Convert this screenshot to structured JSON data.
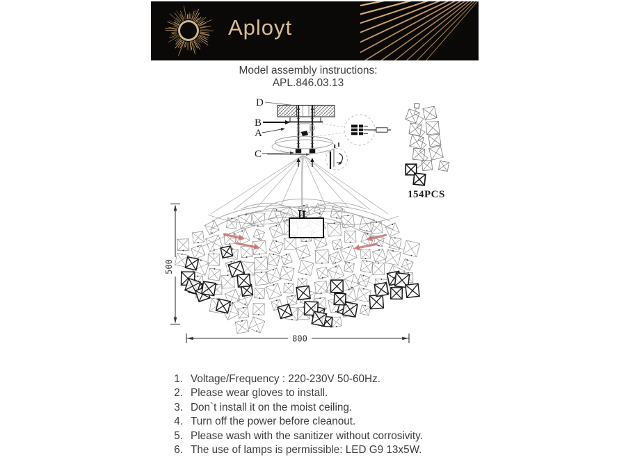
{
  "brand": {
    "logo_text": "Aployt"
  },
  "title": {
    "heading": "Model assembly instructions:",
    "model": "APL.846.03.13"
  },
  "diagram": {
    "part_labels": {
      "d": "D",
      "b": "B",
      "a": "A",
      "c": "C"
    },
    "dimension_height": "500",
    "dimension_width": "800",
    "pieces_count_label": "154PCS",
    "colors": {
      "banner_bg": "#0b0908",
      "gold": "#d9bd93",
      "line": "#3a3a3a",
      "light_line": "#9a9a9a",
      "highlight_arrow": "#c4706f"
    }
  },
  "instructions": {
    "items": [
      {
        "num": "1.",
        "text": "Voltage/Frequency : 220-230V 50-60Hz."
      },
      {
        "num": "2.",
        "text": "Please wear gloves to install."
      },
      {
        "num": "3.",
        "text": "Don`t install it on the moist ceiling."
      },
      {
        "num": "4.",
        "text": "Turn off the power before cleanout."
      },
      {
        "num": "5.",
        "text": "Please wash with the sanitizer without corrosivity."
      },
      {
        "num": "6.",
        "text": "The use of lamps is permissible: LED G9 13x5W."
      }
    ]
  }
}
